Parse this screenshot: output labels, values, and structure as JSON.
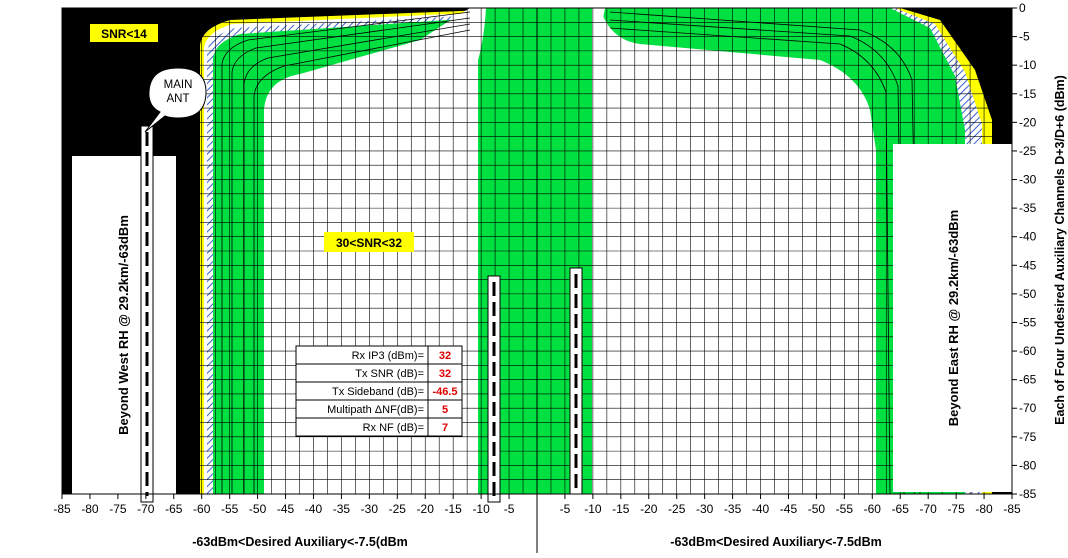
{
  "chart_data": [
    {
      "type": "area",
      "region": "left-panel",
      "xlabel": "-63dBm<Desired Auxiliary<-7.5(dBm",
      "x_ticks": [
        -85,
        -80,
        -75,
        -70,
        -65,
        -60,
        -55,
        -50,
        -45,
        -40,
        -35,
        -30,
        -25,
        -20,
        -15,
        -10,
        -5
      ],
      "xlim": [
        -85,
        0
      ],
      "grid": true,
      "boundary": {
        "y": [
          -10,
          -20,
          -30,
          -40,
          -50,
          -60,
          -70,
          -80,
          -85
        ],
        "outer_x": [
          -62,
          -61,
          -61,
          -61,
          -61,
          -61,
          -61,
          -61,
          -61
        ]
      }
    },
    {
      "type": "area",
      "region": "right-panel",
      "xlabel": "-63dBm<Desired Auxiliary<-7.5dBm",
      "x_ticks": [
        -5,
        -10,
        -15,
        -20,
        -25,
        -30,
        -35,
        -40,
        -45,
        -50,
        -55,
        -60,
        -65,
        -70,
        -75,
        -80,
        -85
      ],
      "xlim": [
        0,
        -85
      ],
      "ylabel": "Each of Four Undesired Auxiliary Channels D+3/D+6 (dBm)",
      "y_ticks": [
        0,
        -5,
        -10,
        -15,
        -20,
        -25,
        -30,
        -35,
        -40,
        -45,
        -50,
        -55,
        -60,
        -65,
        -70,
        -75,
        -80,
        -85
      ],
      "ylim": [
        -85,
        0
      ],
      "grid": true,
      "boundary": {
        "y": [
          -5,
          -10,
          -20,
          -30,
          -40,
          -50,
          -60,
          -70,
          -80,
          -85
        ],
        "outer_x": [
          -72,
          -76,
          -80,
          -80,
          -80,
          -80,
          -80,
          -80,
          -80,
          -80
        ]
      }
    }
  ],
  "annotations": {
    "snr_low": "SNR<14",
    "snr_mid": "30<SNR<32",
    "main_ant": "MAIN ANT",
    "beyond_west": "Beyond West RH @ 29.2km/-63dBm",
    "beyond_east": "Beyond East RH @ 29.2km/-63dBm"
  },
  "params": [
    {
      "label": "Rx IP3 (dBm)=",
      "value": "32"
    },
    {
      "label": "Tx SNR (dB)=",
      "value": "32"
    },
    {
      "label": "Tx Sideband (dB)=",
      "value": "-46.5"
    },
    {
      "label": "Multipath ΔNF(dB)=",
      "value": "5"
    },
    {
      "label": "Rx NF (dB)=",
      "value": "7"
    }
  ],
  "colors": {
    "black": "#000000",
    "green": "#00e040",
    "yellow": "#ffff00",
    "hatch": "#3a5fd0",
    "value_red": "#e00000"
  }
}
